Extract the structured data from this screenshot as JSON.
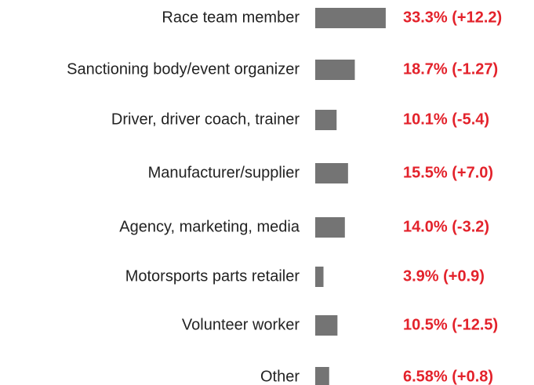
{
  "chart_data": {
    "type": "barh",
    "categories": [
      "Race team member",
      "Sanctioning body/event organizer",
      "Driver, driver coach, trainer",
      "Manufacturer/supplier",
      "Agency, marketing, media",
      "Motorsports parts retailer",
      "Volunteer worker",
      "Other"
    ],
    "values": [
      33.3,
      18.7,
      10.1,
      15.5,
      14.0,
      3.9,
      10.5,
      6.58
    ],
    "value_labels": [
      "33.3% (+12.2)",
      "18.7% (-1.27)",
      "10.1% (-5.4)",
      "15.5% (+7.0)",
      "14.0% (-3.2)",
      "3.9% (+0.9)",
      "10.5% (-12.5)",
      "6.58% (+0.8)"
    ],
    "color": "#747474"
  }
}
